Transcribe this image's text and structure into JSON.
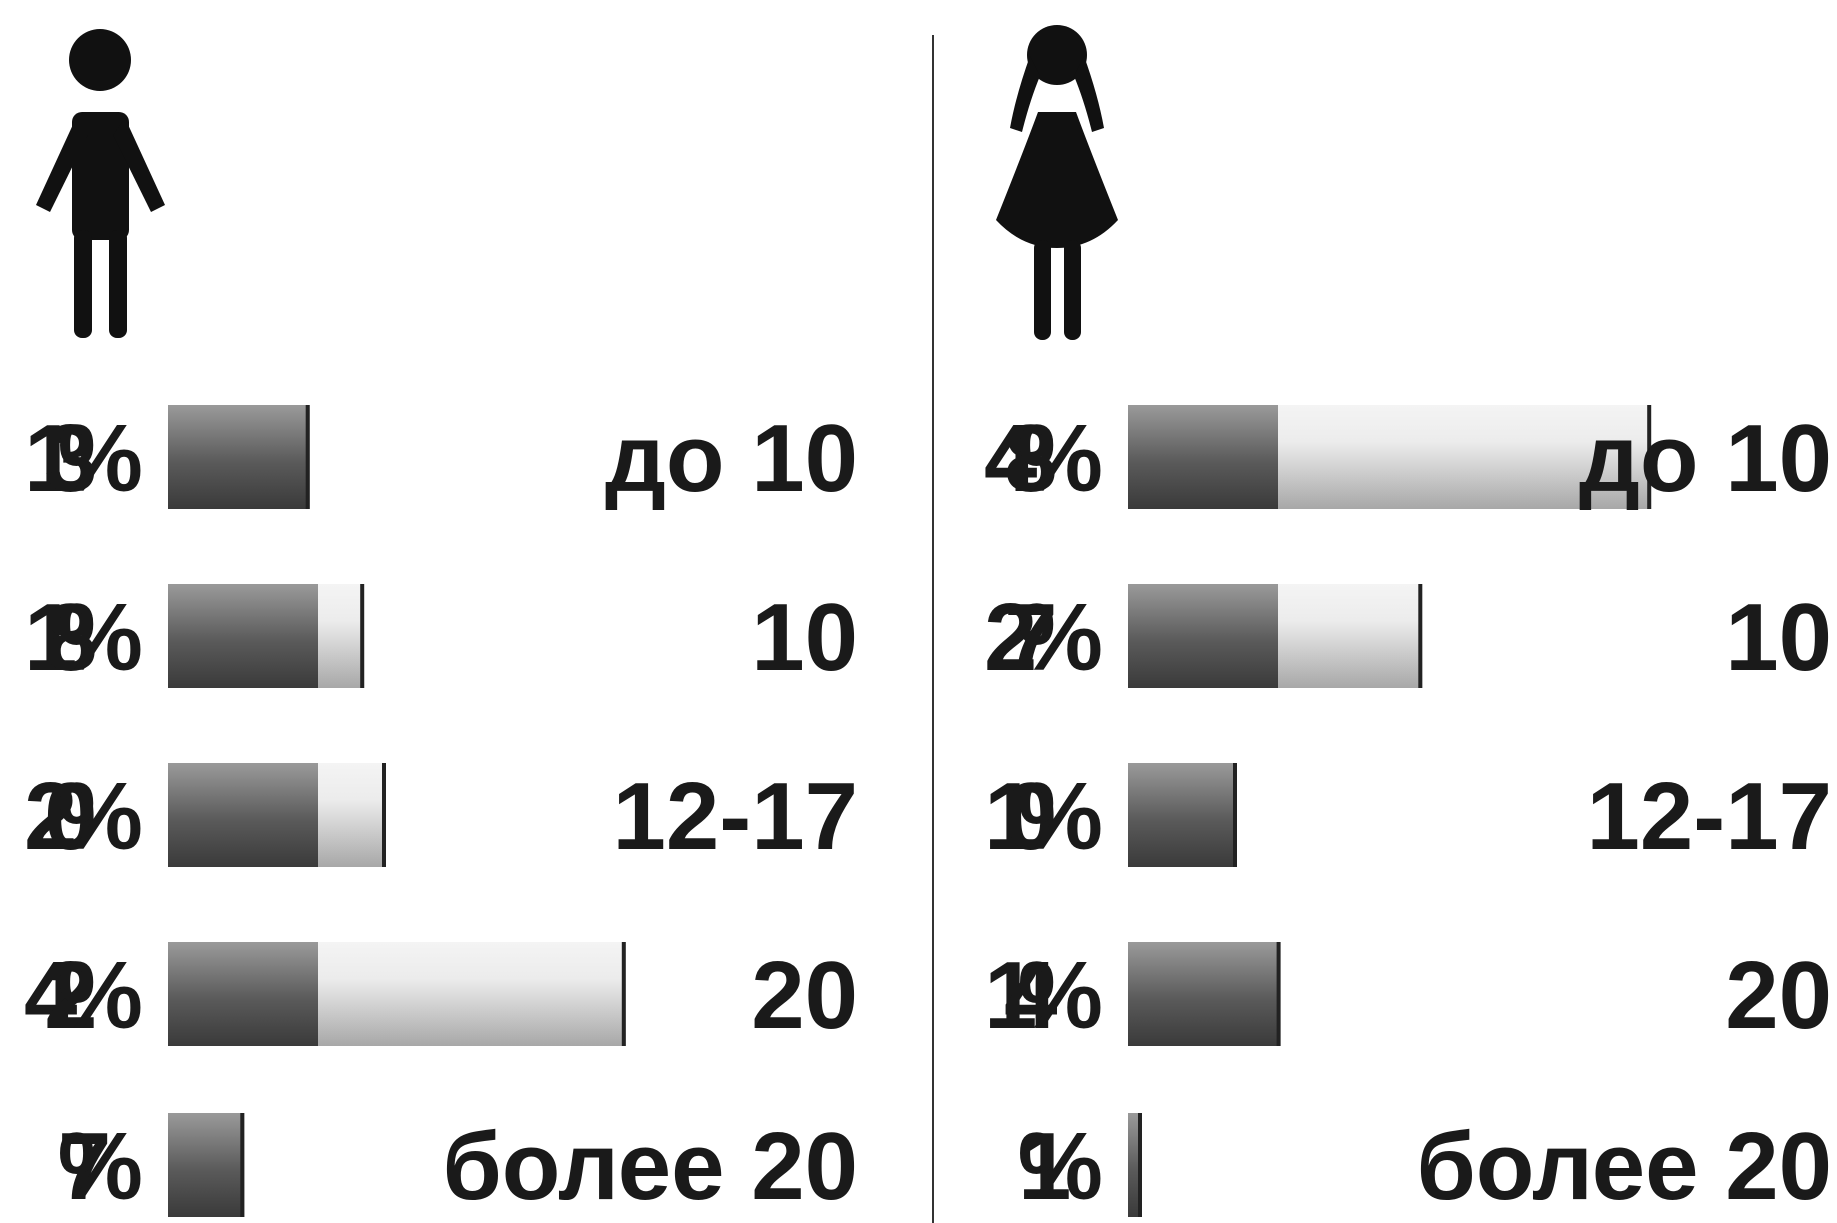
{
  "chart_data": [
    {
      "type": "bar",
      "orientation": "horizontal",
      "icon": "boy-icon",
      "categories": [
        "до 10",
        "10",
        "12-17",
        "20",
        "более 20"
      ],
      "values": [
        13,
        18,
        20,
        42,
        7
      ],
      "value_suffix": " %"
    },
    {
      "type": "bar",
      "orientation": "horizontal",
      "icon": "girl-icon",
      "categories": [
        "до 10",
        "10",
        "12-17",
        "20",
        "более 20"
      ],
      "values": [
        48,
        27,
        10,
        14,
        1
      ],
      "value_suffix": " %"
    }
  ],
  "colors": {
    "bar_dark": "#555555",
    "bar_light": "#e6e6e6",
    "text": "#1a1a1a",
    "divider": "#333333"
  }
}
